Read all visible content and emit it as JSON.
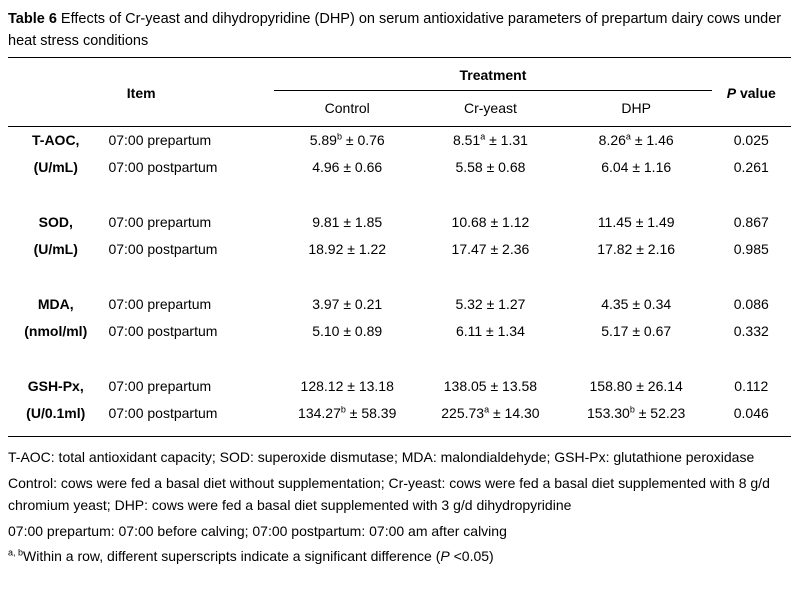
{
  "title": {
    "label": "Table 6",
    "text": " Effects of Cr-yeast and dihydropyridine (DHP) on serum antioxidative parameters of prepartum dairy cows under heat stress conditions"
  },
  "table": {
    "header": {
      "item": "Item",
      "treatment": "Treatment",
      "p_italic": "P",
      "p_rest": " value",
      "columns": [
        "Control",
        "Cr-yeast",
        "DHP"
      ]
    },
    "groups": [
      {
        "name": "T-AOC,",
        "unit": "(U/mL)",
        "rows": [
          {
            "time": "07:00 prepartum",
            "values": [
              {
                "base": "5.89",
                "sup": "b",
                "rest": " ± 0.76"
              },
              {
                "base": "8.51",
                "sup": "a",
                "rest": " ± 1.31"
              },
              {
                "base": "8.26",
                "sup": "a",
                "rest": " ± 1.46"
              }
            ],
            "p": "0.025"
          },
          {
            "time": "07:00 postpartum",
            "values": [
              {
                "base": "4.96",
                "sup": "",
                "rest": " ± 0.66"
              },
              {
                "base": "5.58",
                "sup": "",
                "rest": " ± 0.68"
              },
              {
                "base": "6.04",
                "sup": "",
                "rest": " ± 1.16"
              }
            ],
            "p": "0.261"
          }
        ]
      },
      {
        "name": "SOD,",
        "unit": "(U/mL)",
        "rows": [
          {
            "time": "07:00 prepartum",
            "values": [
              {
                "base": "9.81",
                "sup": "",
                "rest": " ± 1.85"
              },
              {
                "base": "10.68",
                "sup": "",
                "rest": " ± 1.12"
              },
              {
                "base": "11.45",
                "sup": "",
                "rest": " ± 1.49"
              }
            ],
            "p": "0.867"
          },
          {
            "time": "07:00 postpartum",
            "values": [
              {
                "base": "18.92",
                "sup": "",
                "rest": " ± 1.22"
              },
              {
                "base": "17.47",
                "sup": "",
                "rest": " ± 2.36"
              },
              {
                "base": "17.82",
                "sup": "",
                "rest": " ± 2.16"
              }
            ],
            "p": "0.985"
          }
        ]
      },
      {
        "name": "MDA,",
        "unit": "(nmol/ml)",
        "rows": [
          {
            "time": "07:00 prepartum",
            "values": [
              {
                "base": "3.97",
                "sup": "",
                "rest": " ± 0.21"
              },
              {
                "base": "5.32",
                "sup": "",
                "rest": " ± 1.27"
              },
              {
                "base": "4.35",
                "sup": "",
                "rest": " ± 0.34"
              }
            ],
            "p": "0.086"
          },
          {
            "time": "07:00 postpartum",
            "values": [
              {
                "base": "5.10",
                "sup": "",
                "rest": " ± 0.89"
              },
              {
                "base": "6.11",
                "sup": "",
                "rest": " ± 1.34"
              },
              {
                "base": "5.17",
                "sup": "",
                "rest": " ± 0.67"
              }
            ],
            "p": "0.332"
          }
        ]
      },
      {
        "name": "GSH-Px,",
        "unit": "(U/0.1ml)",
        "rows": [
          {
            "time": "07:00 prepartum",
            "values": [
              {
                "base": "128.12",
                "sup": "",
                "rest": " ± 13.18"
              },
              {
                "base": "138.05",
                "sup": "",
                "rest": " ± 13.58"
              },
              {
                "base": "158.80",
                "sup": "",
                "rest": " ± 26.14"
              }
            ],
            "p": "0.112"
          },
          {
            "time": "07:00 postpartum",
            "values": [
              {
                "base": "134.27",
                "sup": "b",
                "rest": " ± 58.39"
              },
              {
                "base": "225.73",
                "sup": "a",
                "rest": " ± 14.30"
              },
              {
                "base": "153.30",
                "sup": "b",
                "rest": " ± 52.23"
              }
            ],
            "p": "0.046"
          }
        ]
      }
    ]
  },
  "footnotes": [
    [
      {
        "t": "T-AOC: total antioxidant capacity; SOD: superoxide dismutase; MDA: malondialdehyde; GSH-Px: glutathione peroxidase",
        "s": "n"
      }
    ],
    [
      {
        "t": "Control: cows were fed a basal diet without supplementation; Cr-yeast: cows were fed a basal diet supplemented with 8 g/d chromium yeast; DHP: cows were fed a basal diet supplemented with 3 g/d dihydropyridine",
        "s": "n"
      }
    ],
    [
      {
        "t": "07:00 prepartum: 07:00 before calving; 07:00 postpartum: 07:00 am after calving",
        "s": "n"
      }
    ],
    [
      {
        "t": "a, b",
        "s": "sup"
      },
      {
        "t": "Within a row, different superscripts indicate a significant difference (",
        "s": "n"
      },
      {
        "t": "P",
        "s": "i"
      },
      {
        "t": " <0.05)",
        "s": "n"
      }
    ]
  ]
}
